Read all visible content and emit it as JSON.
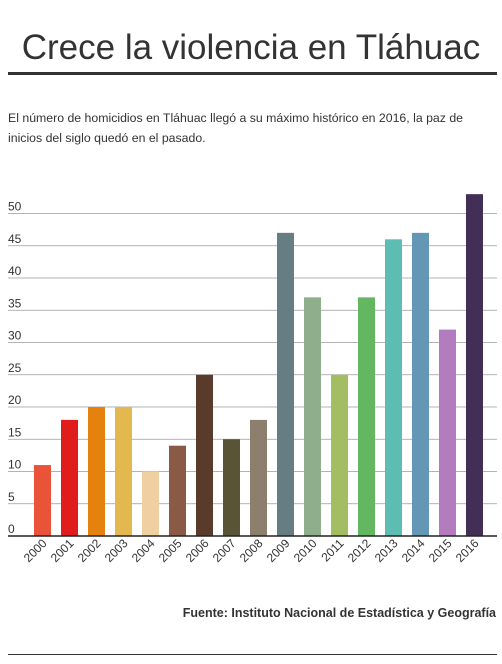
{
  "header": {
    "title": "Crece la violencia en Tláhuac",
    "subtitle": "El número de homicidios en Tláhuac llegó a su máximo histórico en 2016, la paz de inicios del siglo quedó en el pasado."
  },
  "footer": {
    "source": "Fuente: Instituto Nacional de Estadística y Geografía"
  },
  "chart_data": {
    "type": "bar",
    "categories": [
      "2000",
      "2001",
      "2002",
      "2003",
      "2004",
      "2005",
      "2006",
      "2007",
      "2008",
      "2009",
      "2010",
      "2011",
      "2012",
      "2013",
      "2014",
      "2015",
      "2016"
    ],
    "values": [
      11,
      18,
      20,
      20,
      10,
      14,
      25,
      15,
      18,
      47,
      37,
      25,
      37,
      46,
      47,
      32,
      53
    ],
    "colors": [
      "#e8533a",
      "#e11c1c",
      "#e5820e",
      "#e3b84e",
      "#f0cfa3",
      "#8a5a47",
      "#5a3a2b",
      "#5a5437",
      "#8c7f6d",
      "#667e83",
      "#8eae8c",
      "#a3bd62",
      "#62b760",
      "#5ebdb3",
      "#6496b5",
      "#b27cbf",
      "#432f56"
    ],
    "yticks": [
      0,
      5,
      10,
      15,
      20,
      25,
      30,
      35,
      40,
      45,
      50
    ],
    "ylim": [
      0,
      53
    ],
    "grid": true,
    "xlabel": "",
    "ylabel": ""
  }
}
